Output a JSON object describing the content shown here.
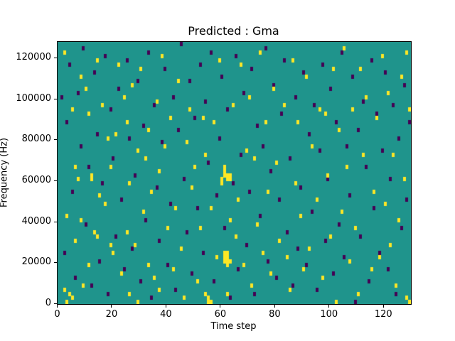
{
  "figure": {
    "title": "Predicted : Gma",
    "xlabel": "Time step",
    "ylabel": "Frequency (Hz)"
  },
  "chart_data": {
    "type": "heatmap",
    "title": "Predicted : Gma",
    "xlabel": "Time step",
    "ylabel": "Frequency (Hz)",
    "xlim": [
      0,
      130
    ],
    "ylim": [
      0,
      128000
    ],
    "x_ticks": [
      0,
      20,
      40,
      60,
      80,
      100,
      120
    ],
    "y_ticks": [
      0,
      20000,
      40000,
      60000,
      80000,
      100000,
      120000
    ],
    "grid": false,
    "legend": "none",
    "n_time_steps": 130,
    "n_freq_bins": 64,
    "freq_bin_size_hz": 2000,
    "colors": {
      "background": "#1f948c",
      "active": "#fde725",
      "inactive": "#440154"
    },
    "cells_yellow": [
      [
        2,
        61
      ],
      [
        2,
        3
      ],
      [
        3,
        0
      ],
      [
        3,
        21
      ],
      [
        4,
        2
      ],
      [
        5,
        1
      ],
      [
        5,
        47
      ],
      [
        6,
        33
      ],
      [
        6,
        15
      ],
      [
        7,
        30
      ],
      [
        8,
        55
      ],
      [
        8,
        20
      ],
      [
        9,
        4
      ],
      [
        10,
        52
      ],
      [
        11,
        46
      ],
      [
        11,
        9
      ],
      [
        12,
        31
      ],
      [
        12,
        30
      ],
      [
        13,
        17
      ],
      [
        14,
        16
      ],
      [
        14,
        59
      ],
      [
        15,
        26
      ],
      [
        16,
        48
      ],
      [
        17,
        24
      ],
      [
        18,
        40
      ],
      [
        19,
        33
      ],
      [
        19,
        14
      ],
      [
        20,
        12
      ],
      [
        21,
        41
      ],
      [
        22,
        58
      ],
      [
        23,
        7
      ],
      [
        24,
        50
      ],
      [
        25,
        17
      ],
      [
        25,
        44
      ],
      [
        26,
        2
      ],
      [
        26,
        29
      ],
      [
        27,
        53
      ],
      [
        28,
        14
      ],
      [
        29,
        0
      ],
      [
        29,
        37
      ],
      [
        30,
        57
      ],
      [
        31,
        22
      ],
      [
        32,
        35
      ],
      [
        33,
        42
      ],
      [
        33,
        9
      ],
      [
        34,
        27
      ],
      [
        35,
        6
      ],
      [
        36,
        49
      ],
      [
        37,
        3
      ],
      [
        37,
        32
      ],
      [
        38,
        60
      ],
      [
        39,
        38
      ],
      [
        40,
        18
      ],
      [
        41,
        45
      ],
      [
        42,
        8
      ],
      [
        43,
        23
      ],
      [
        44,
        54
      ],
      [
        45,
        13
      ],
      [
        46,
        1
      ],
      [
        47,
        39
      ],
      [
        48,
        47
      ],
      [
        49,
        28
      ],
      [
        50,
        33
      ],
      [
        51,
        5
      ],
      [
        52,
        18
      ],
      [
        53,
        45
      ],
      [
        54,
        2
      ],
      [
        54,
        36
      ],
      [
        55,
        1
      ],
      [
        55,
        0
      ],
      [
        56,
        0
      ],
      [
        56,
        23
      ],
      [
        57,
        44
      ],
      [
        58,
        11
      ],
      [
        59,
        59
      ],
      [
        60,
        30
      ],
      [
        60,
        29
      ],
      [
        61,
        33
      ],
      [
        61,
        32
      ],
      [
        61,
        31
      ],
      [
        61,
        12
      ],
      [
        61,
        11
      ],
      [
        61,
        10
      ],
      [
        62,
        31
      ],
      [
        62,
        30
      ],
      [
        62,
        12
      ],
      [
        62,
        11
      ],
      [
        62,
        10
      ],
      [
        62,
        9
      ],
      [
        62,
        2
      ],
      [
        63,
        31
      ],
      [
        63,
        30
      ],
      [
        63,
        20
      ],
      [
        63,
        10
      ],
      [
        64,
        48
      ],
      [
        65,
        16
      ],
      [
        66,
        25
      ],
      [
        67,
        58
      ],
      [
        68,
        9
      ],
      [
        69,
        37
      ],
      [
        70,
        50
      ],
      [
        71,
        4
      ],
      [
        72,
        35
      ],
      [
        73,
        19
      ],
      [
        74,
        61
      ],
      [
        75,
        12
      ],
      [
        76,
        44
      ],
      [
        77,
        27
      ],
      [
        78,
        7
      ],
      [
        79,
        52
      ],
      [
        80,
        34
      ],
      [
        81,
        15
      ],
      [
        83,
        48
      ],
      [
        84,
        11
      ],
      [
        85,
        3
      ],
      [
        86,
        59
      ],
      [
        87,
        29
      ],
      [
        88,
        44
      ],
      [
        89,
        21
      ],
      [
        90,
        8
      ],
      [
        91,
        55
      ],
      [
        92,
        13
      ],
      [
        93,
        38
      ],
      [
        95,
        25
      ],
      [
        96,
        47
      ],
      [
        97,
        6
      ],
      [
        98,
        46
      ],
      [
        99,
        31
      ],
      [
        100,
        16
      ],
      [
        101,
        57
      ],
      [
        102,
        0
      ],
      [
        103,
        42
      ],
      [
        104,
        22
      ],
      [
        105,
        62
      ],
      [
        106,
        33
      ],
      [
        107,
        10
      ],
      [
        108,
        47
      ],
      [
        109,
        18
      ],
      [
        110,
        2
      ],
      [
        111,
        57
      ],
      [
        112,
        36
      ],
      [
        113,
        50
      ],
      [
        115,
        8
      ],
      [
        116,
        27
      ],
      [
        117,
        45
      ],
      [
        118,
        11
      ],
      [
        119,
        60
      ],
      [
        120,
        24
      ],
      [
        121,
        51
      ],
      [
        122,
        14
      ],
      [
        123,
        36
      ],
      [
        124,
        4
      ],
      [
        125,
        20
      ],
      [
        126,
        55
      ],
      [
        127,
        30
      ],
      [
        128,
        61
      ],
      [
        128,
        1
      ],
      [
        129,
        47
      ],
      [
        129,
        0
      ]
    ],
    "cells_purple": [
      [
        1,
        50
      ],
      [
        2,
        12
      ],
      [
        3,
        44
      ],
      [
        4,
        58
      ],
      [
        5,
        27
      ],
      [
        6,
        6
      ],
      [
        7,
        51
      ],
      [
        8,
        38
      ],
      [
        9,
        62
      ],
      [
        10,
        19
      ],
      [
        11,
        33
      ],
      [
        12,
        4
      ],
      [
        13,
        56
      ],
      [
        14,
        41
      ],
      [
        15,
        10
      ],
      [
        16,
        29
      ],
      [
        17,
        60
      ],
      [
        18,
        2
      ],
      [
        19,
        47
      ],
      [
        20,
        35
      ],
      [
        21,
        16
      ],
      [
        22,
        52
      ],
      [
        23,
        25
      ],
      [
        24,
        8
      ],
      [
        25,
        59
      ],
      [
        26,
        40
      ],
      [
        27,
        13
      ],
      [
        28,
        31
      ],
      [
        29,
        54
      ],
      [
        30,
        5
      ],
      [
        31,
        43
      ],
      [
        32,
        20
      ],
      [
        33,
        61
      ],
      [
        34,
        1
      ],
      [
        35,
        48
      ],
      [
        36,
        28
      ],
      [
        37,
        15
      ],
      [
        38,
        39
      ],
      [
        39,
        57
      ],
      [
        40,
        9
      ],
      [
        41,
        24
      ],
      [
        42,
        50
      ],
      [
        43,
        3
      ],
      [
        44,
        42
      ],
      [
        45,
        63
      ],
      [
        46,
        30
      ],
      [
        47,
        17
      ],
      [
        48,
        54
      ],
      [
        49,
        7
      ],
      [
        50,
        45
      ],
      [
        51,
        23
      ],
      [
        52,
        58
      ],
      [
        53,
        12
      ],
      [
        54,
        49
      ],
      [
        55,
        34
      ],
      [
        56,
        61
      ],
      [
        57,
        5
      ],
      [
        58,
        26
      ],
      [
        59,
        40
      ],
      [
        60,
        55
      ],
      [
        61,
        18
      ],
      [
        62,
        47
      ],
      [
        63,
        1
      ],
      [
        64,
        29
      ],
      [
        65,
        60
      ],
      [
        66,
        8
      ],
      [
        67,
        36
      ],
      [
        68,
        51
      ],
      [
        69,
        14
      ],
      [
        70,
        27
      ],
      [
        71,
        57
      ],
      [
        72,
        2
      ],
      [
        73,
        43
      ],
      [
        74,
        21
      ],
      [
        75,
        38
      ],
      [
        76,
        62
      ],
      [
        77,
        10
      ],
      [
        78,
        32
      ],
      [
        79,
        53
      ],
      [
        80,
        6
      ],
      [
        81,
        25
      ],
      [
        82,
        46
      ],
      [
        83,
        59
      ],
      [
        84,
        17
      ],
      [
        85,
        35
      ],
      [
        86,
        4
      ],
      [
        87,
        50
      ],
      [
        88,
        13
      ],
      [
        89,
        28
      ],
      [
        90,
        56
      ],
      [
        91,
        9
      ],
      [
        92,
        41
      ],
      [
        93,
        22
      ],
      [
        94,
        48
      ],
      [
        95,
        3
      ],
      [
        96,
        37
      ],
      [
        97,
        58
      ],
      [
        98,
        15
      ],
      [
        99,
        30
      ],
      [
        100,
        52
      ],
      [
        101,
        7
      ],
      [
        102,
        44
      ],
      [
        103,
        19
      ],
      [
        104,
        61
      ],
      [
        105,
        11
      ],
      [
        106,
        38
      ],
      [
        107,
        26
      ],
      [
        108,
        55
      ],
      [
        109,
        0
      ],
      [
        110,
        42
      ],
      [
        111,
        16
      ],
      [
        112,
        49
      ],
      [
        113,
        33
      ],
      [
        114,
        5
      ],
      [
        115,
        59
      ],
      [
        116,
        23
      ],
      [
        117,
        46
      ],
      [
        118,
        12
      ],
      [
        119,
        37
      ],
      [
        120,
        56
      ],
      [
        121,
        8
      ],
      [
        122,
        30
      ],
      [
        123,
        48
      ],
      [
        124,
        2
      ],
      [
        125,
        40
      ],
      [
        126,
        18
      ],
      [
        127,
        53
      ],
      [
        128,
        25
      ],
      [
        129,
        44
      ]
    ]
  }
}
